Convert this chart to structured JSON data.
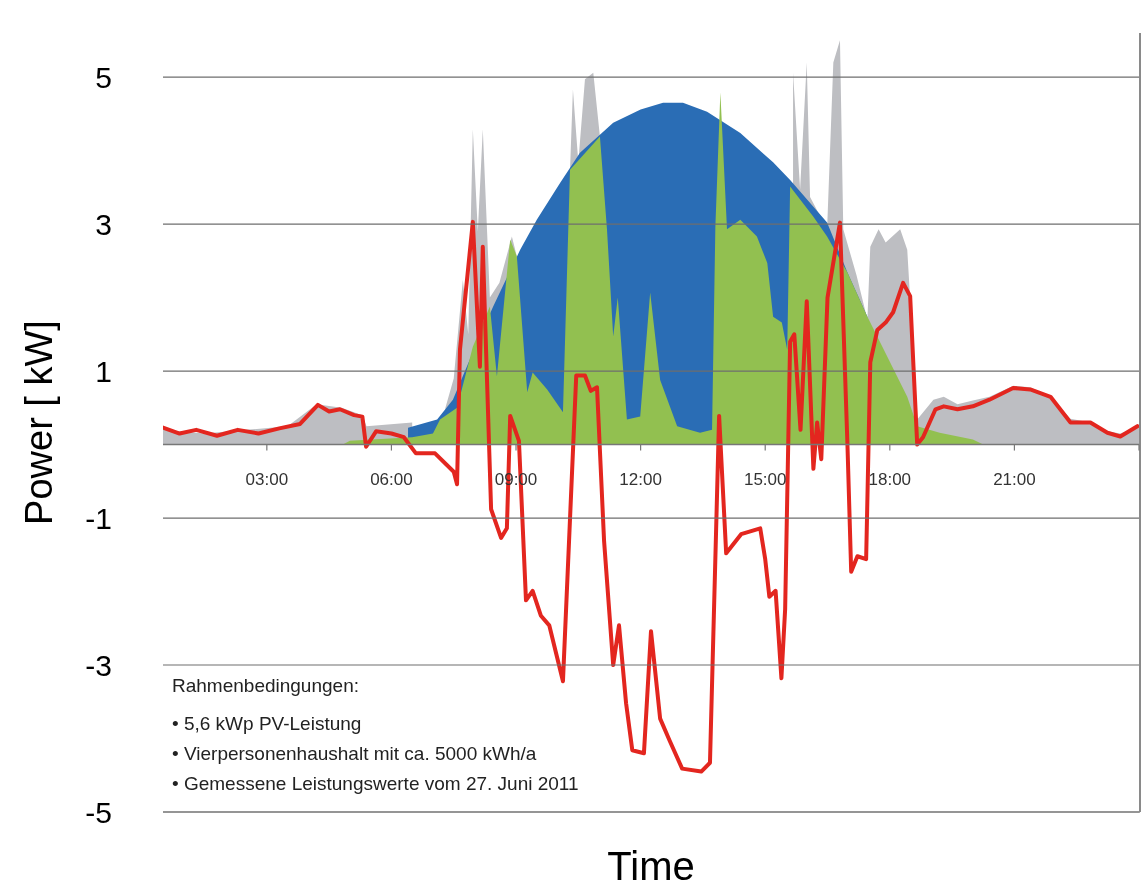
{
  "chart_data": {
    "type": "area",
    "xlabel": "Time",
    "ylabel": "Power [ kW]",
    "xlim": [
      0.5,
      24
    ],
    "ylim": [
      -5,
      5.6
    ],
    "xticks": [
      {
        "value": 3,
        "label": "03:00"
      },
      {
        "value": 6,
        "label": "06:00"
      },
      {
        "value": 9,
        "label": "09:00"
      },
      {
        "value": 12,
        "label": "12:00"
      },
      {
        "value": 15,
        "label": "15:00"
      },
      {
        "value": 18,
        "label": "18:00"
      },
      {
        "value": 21,
        "label": "21:00"
      },
      {
        "value": 24,
        "label": null
      }
    ],
    "yticks": [
      5,
      3,
      1,
      -1,
      -3,
      -5
    ],
    "grid": "y",
    "series": [
      {
        "color": "#bdbec2",
        "x": [
          0.5,
          1.5,
          2.5,
          3.5,
          4.2,
          4.8,
          5.3,
          5.4,
          6.5,
          7.0,
          7.3,
          7.5,
          7.72,
          7.85,
          7.96,
          8.08,
          8.2,
          8.37,
          8.6,
          8.9,
          9.02,
          9.27,
          9.75,
          10.13,
          10.3,
          10.37,
          10.5,
          10.66,
          10.86,
          11.02,
          11.19,
          11.34,
          11.67,
          11.99,
          12.23,
          12.47,
          12.88,
          13.43,
          13.72,
          13.8,
          13.89,
          14.08,
          14.4,
          14.8,
          15.05,
          15.19,
          15.4,
          15.53,
          15.6,
          15.67,
          15.84,
          16.0,
          16.08,
          16.49,
          16.64,
          16.8,
          16.88,
          17.2,
          17.46,
          17.53,
          17.73,
          17.9,
          18.25,
          18.42,
          18.66,
          19.05,
          19.3,
          19.63,
          20.0,
          20.4,
          20.97,
          21.38,
          21.87,
          22.35,
          22.83,
          23.24,
          23.55,
          24.0
        ],
        "values": [
          0.2,
          0.15,
          0.2,
          0.25,
          0.55,
          0.5,
          0.4,
          0.25,
          0.3,
          null,
          0.5,
          0.9,
          2.24,
          1.5,
          4.29,
          2.9,
          4.29,
          2.0,
          2.2,
          2.83,
          2.56,
          null,
          null,
          null,
          3.74,
          4.83,
          3.84,
          4.97,
          5.06,
          4.19,
          null,
          null,
          null,
          null,
          null,
          null,
          null,
          null,
          null,
          null,
          null,
          null,
          null,
          null,
          null,
          null,
          null,
          null,
          null,
          5.06,
          3.47,
          5.2,
          3.37,
          2.93,
          5.2,
          5.5,
          2.93,
          2.3,
          1.7,
          2.69,
          2.93,
          2.75,
          2.93,
          2.65,
          0.34,
          0.61,
          0.65,
          0.55,
          0.6,
          0.65,
          0.8,
          0.78,
          0.65,
          0.35,
          0.3,
          0.18,
          0.15,
          0.25
        ]
      },
      {
        "color": "#2a6db5",
        "x": [
          6.4,
          7.1,
          7.48,
          8.06,
          8.45,
          9.1,
          9.5,
          10.06,
          10.54,
          11.34,
          12.0,
          12.54,
          13.02,
          13.6,
          14.4,
          15.19,
          15.6,
          16.49,
          16.98,
          17.46,
          17.5
        ],
        "values": [
          0.23,
          0.34,
          0.61,
          1.39,
          1.88,
          2.65,
          3.06,
          3.56,
          3.97,
          4.38,
          4.56,
          4.65,
          4.65,
          4.53,
          4.24,
          3.84,
          3.6,
          3.02,
          2.34,
          1.74,
          0
        ]
      },
      {
        "color": "#92c050",
        "x": [
          4.83,
          5.0,
          6.5,
          7.0,
          7.17,
          7.58,
          7.96,
          8.37,
          8.54,
          8.86,
          9.02,
          9.27,
          9.4,
          9.75,
          10.13,
          10.3,
          11.02,
          11.19,
          11.34,
          11.45,
          11.67,
          11.99,
          12.23,
          12.47,
          12.88,
          13.43,
          13.72,
          13.8,
          13.92,
          14.08,
          14.4,
          14.8,
          15.05,
          15.19,
          15.4,
          15.53,
          15.6,
          16.16,
          16.49,
          16.98,
          17.46,
          17.53,
          18.42,
          18.66,
          19.2,
          20.0,
          20.25
        ],
        "values": [
          0,
          0.05,
          0.1,
          0.15,
          0.34,
          0.5,
          1.33,
          1.88,
          0.93,
          2.79,
          2.56,
          0.71,
          0.98,
          0.75,
          0.44,
          3.74,
          4.19,
          2.93,
          1.47,
          2.0,
          0.34,
          0.38,
          2.07,
          0.88,
          0.25,
          0.16,
          0.2,
          2.97,
          4.79,
          2.93,
          3.06,
          2.83,
          2.47,
          1.74,
          1.66,
          1.29,
          3.51,
          3.1,
          2.83,
          2.34,
          1.74,
          1.66,
          0.65,
          0.25,
          0.16,
          0.07,
          0
        ]
      },
      {
        "type": "line",
        "color": "#e3261f",
        "x": [
          0.5,
          0.9,
          1.3,
          1.8,
          2.3,
          2.8,
          3.3,
          3.8,
          4.23,
          4.5,
          4.76,
          5.1,
          5.3,
          5.39,
          5.63,
          6.0,
          6.3,
          6.59,
          7.05,
          7.5,
          7.58,
          7.65,
          7.96,
          8.13,
          8.2,
          8.4,
          8.64,
          8.78,
          8.86,
          9.07,
          9.24,
          9.4,
          9.6,
          9.8,
          10.13,
          10.45,
          10.66,
          10.8,
          10.95,
          11.12,
          11.34,
          11.48,
          11.65,
          11.8,
          12.08,
          12.25,
          12.47,
          12.7,
          13.0,
          13.46,
          13.67,
          13.89,
          14.06,
          14.42,
          14.88,
          15.0,
          15.1,
          15.25,
          15.39,
          15.48,
          15.6,
          15.7,
          15.85,
          16.0,
          16.16,
          16.25,
          16.35,
          16.5,
          16.8,
          16.98,
          17.07,
          17.22,
          17.43,
          17.53,
          17.7,
          17.9,
          18.08,
          18.32,
          18.49,
          18.57,
          18.66,
          18.8,
          19.1,
          19.3,
          19.63,
          20.0,
          20.4,
          20.97,
          21.38,
          21.87,
          22.35,
          22.83,
          23.24,
          23.55,
          23.96
        ],
        "values": [
          0.23,
          0.15,
          0.2,
          0.12,
          0.2,
          0.15,
          0.22,
          0.28,
          0.54,
          0.45,
          0.48,
          0.4,
          0.38,
          -0.03,
          0.18,
          0.15,
          0.1,
          -0.12,
          -0.12,
          -0.37,
          -0.54,
          1.29,
          3.03,
          1.06,
          2.69,
          -0.88,
          -1.27,
          -1.14,
          0.39,
          0.05,
          -2.12,
          -1.99,
          -2.33,
          -2.46,
          -3.22,
          0.94,
          0.94,
          0.73,
          0.78,
          -1.31,
          -3.0,
          -2.46,
          -3.52,
          -4.16,
          -4.2,
          -2.54,
          -3.73,
          -4.03,
          -4.41,
          -4.45,
          -4.33,
          0.39,
          -1.48,
          -1.22,
          -1.14,
          -1.56,
          -2.07,
          -1.99,
          -3.18,
          -2.24,
          1.4,
          1.5,
          0.2,
          1.95,
          -0.33,
          0.3,
          -0.2,
          2.0,
          3.02,
          0,
          -1.73,
          -1.52,
          -1.56,
          1.12,
          1.56,
          1.66,
          1.8,
          2.2,
          2.02,
          1.06,
          0,
          0.1,
          0.48,
          0.52,
          0.48,
          0.52,
          0.61,
          0.77,
          0.75,
          0.65,
          0.3,
          0.3,
          0.16,
          0.11,
          0.25
        ]
      }
    ],
    "annotations": [
      "Rahmenbedingungen:",
      "• 5,6 kWp PV-Leistung",
      "• Vierpersonenhaushalt mit ca. 5000 kWh/a",
      "• Gemessene Leistungswerte vom 27. Juni 2011"
    ]
  }
}
